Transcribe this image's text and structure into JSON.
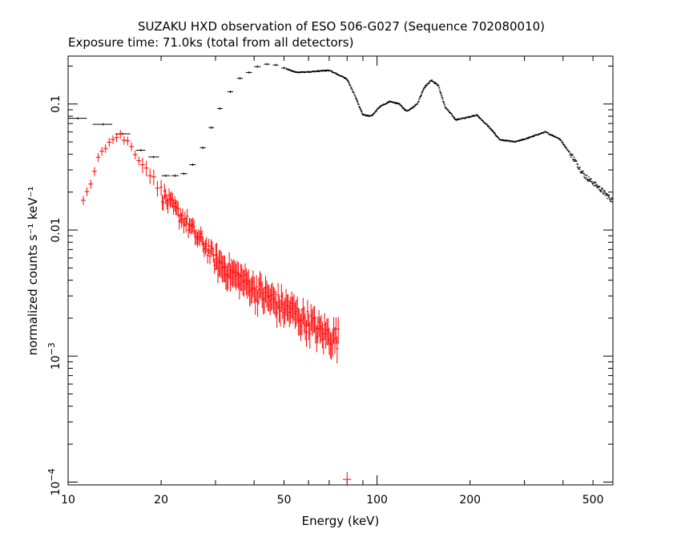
{
  "chart_data": {
    "type": "scatter",
    "title": "SUZAKU HXD observation of ESO 506-G027 (Sequence 702080010)",
    "subtitle": "Exposure time: 71.0ks (total from all detectors)",
    "xlabel": "Energy (keV)",
    "ylabel": "normalized counts s⁻¹ keV⁻¹",
    "xscale": "log",
    "yscale": "log",
    "xlim": [
      10,
      580
    ],
    "ylim": [
      9.5e-05,
      0.24
    ],
    "grid": false,
    "x_ticks": [
      {
        "value": 10,
        "label": "10"
      },
      {
        "value": 20,
        "label": "20"
      },
      {
        "value": 50,
        "label": "50"
      },
      {
        "value": 100,
        "label": "100"
      },
      {
        "value": 200,
        "label": "200"
      },
      {
        "value": 500,
        "label": "500"
      }
    ],
    "y_ticks": [
      {
        "value": 0.1,
        "label": "0.1"
      },
      {
        "value": 0.01,
        "label": "0.01"
      },
      {
        "value": 0.001,
        "label": "10",
        "exp": "−3"
      },
      {
        "value": 0.0001,
        "label": "10",
        "exp": "−4"
      }
    ],
    "series": [
      {
        "color": "#000000",
        "anchors": [
          [
            10,
            0.077
          ],
          [
            11.5,
            0.074
          ],
          [
            12.6,
            0.069
          ],
          [
            14.5,
            0.063
          ],
          [
            15.8,
            0.055
          ],
          [
            17.2,
            0.046
          ],
          [
            19.2,
            0.037
          ],
          [
            20.7,
            0.029
          ],
          [
            22.3,
            0.027
          ],
          [
            23.8,
            0.028
          ],
          [
            25.3,
            0.032
          ],
          [
            27.3,
            0.045
          ],
          [
            29.1,
            0.063
          ],
          [
            30.6,
            0.092
          ],
          [
            34,
            0.125
          ],
          [
            38,
            0.172
          ],
          [
            41,
            0.2
          ],
          [
            45,
            0.207
          ],
          [
            50,
            0.192
          ],
          [
            55,
            0.178
          ],
          [
            60,
            0.18
          ],
          [
            70,
            0.185
          ],
          [
            80,
            0.158
          ],
          [
            85,
            0.115
          ],
          [
            90,
            0.082
          ],
          [
            96,
            0.08
          ],
          [
            102,
            0.095
          ],
          [
            110,
            0.105
          ],
          [
            118,
            0.1
          ],
          [
            125,
            0.087
          ],
          [
            135,
            0.1
          ],
          [
            142,
            0.135
          ],
          [
            150,
            0.155
          ],
          [
            158,
            0.14
          ],
          [
            166,
            0.095
          ],
          [
            180,
            0.075
          ],
          [
            195,
            0.078
          ],
          [
            210,
            0.082
          ],
          [
            230,
            0.066
          ],
          [
            250,
            0.052
          ],
          [
            280,
            0.05
          ],
          [
            310,
            0.054
          ],
          [
            350,
            0.06
          ],
          [
            390,
            0.053
          ],
          [
            430,
            0.038
          ],
          [
            470,
            0.027
          ],
          [
            520,
            0.022
          ],
          [
            580,
            0.017
          ]
        ],
        "points": [
          {
            "x": 10.75,
            "y": 0.077,
            "xlo": 10.0,
            "xhi": 11.5
          },
          {
            "x": 13.0,
            "y": 0.069,
            "xlo": 12.0,
            "xhi": 13.9
          },
          {
            "x": 15.0,
            "y": 0.058,
            "xlo": 14.2,
            "xhi": 15.9
          },
          {
            "x": 17.2,
            "y": 0.043,
            "xlo": 16.6,
            "xhi": 17.8
          },
          {
            "x": 18.9,
            "y": 0.038,
            "xlo": 18.2,
            "xhi": 19.7
          },
          {
            "x": 20.7,
            "y": 0.027,
            "xlo": 20.1,
            "xhi": 21.4
          },
          {
            "x": 22.2,
            "y": 0.027,
            "xlo": 21.6,
            "xhi": 22.8
          },
          {
            "x": 23.7,
            "y": 0.028,
            "xlo": 23.1,
            "xhi": 24.3
          },
          {
            "x": 25.3,
            "y": 0.033,
            "xlo": 24.7,
            "xhi": 25.9
          },
          {
            "x": 27.3,
            "y": 0.045,
            "xlo": 26.7,
            "xhi": 27.9
          },
          {
            "x": 29.1,
            "y": 0.065,
            "xlo": 28.5,
            "xhi": 29.7
          },
          {
            "x": 31.0,
            "y": 0.092,
            "xlo": 30.4,
            "xhi": 31.6
          },
          {
            "x": 33.5,
            "y": 0.125,
            "xlo": 32.8,
            "xhi": 34.2
          },
          {
            "x": 36.0,
            "y": 0.16,
            "xlo": 35.2,
            "xhi": 36.8
          },
          {
            "x": 38.5,
            "y": 0.178,
            "xlo": 37.6,
            "xhi": 39.4
          },
          {
            "x": 41.0,
            "y": 0.198,
            "xlo": 40.0,
            "xhi": 42.0
          },
          {
            "x": 44.0,
            "y": 0.207,
            "xlo": 43.0,
            "xhi": 45.0
          },
          {
            "x": 47.0,
            "y": 0.204,
            "xlo": 46.0,
            "xhi": 48.0
          },
          {
            "x": 50.0,
            "y": 0.193,
            "xlo": 49.0,
            "xhi": 51.0
          }
        ]
      },
      {
        "color": "#ff0000",
        "anchors": [
          [
            11.2,
            0.017
          ],
          [
            12,
            0.027
          ],
          [
            12.6,
            0.042
          ],
          [
            13.4,
            0.048
          ],
          [
            14.2,
            0.055
          ],
          [
            14.8,
            0.056
          ],
          [
            15.6,
            0.05
          ],
          [
            16.4,
            0.042
          ],
          [
            17.4,
            0.034
          ],
          [
            18.5,
            0.028
          ],
          [
            19.7,
            0.021
          ],
          [
            21,
            0.017
          ],
          [
            22.5,
            0.014
          ],
          [
            24,
            0.012
          ],
          [
            26,
            0.009
          ],
          [
            28,
            0.0075
          ],
          [
            30,
            0.0058
          ],
          [
            33,
            0.0048
          ],
          [
            36,
            0.0042
          ],
          [
            40,
            0.0035
          ],
          [
            44,
            0.003
          ],
          [
            48,
            0.0026
          ],
          [
            52,
            0.0024
          ],
          [
            56,
            0.0021
          ],
          [
            60,
            0.0019
          ],
          [
            65,
            0.0016
          ],
          [
            70,
            0.0015
          ],
          [
            75,
            0.0014
          ]
        ],
        "points": [
          {
            "x": 80.0,
            "y": 0.000105,
            "xlo": 77.5,
            "xhi": 82.5,
            "ylo": 9.3e-05,
            "yhi": 0.00012
          }
        ]
      }
    ]
  }
}
